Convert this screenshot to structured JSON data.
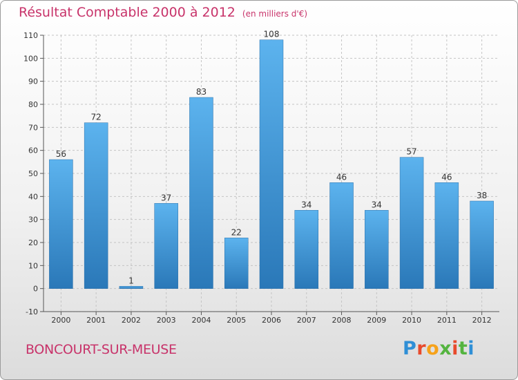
{
  "chart_data": {
    "type": "bar",
    "title": "Résultat Comptable 2000 à 2012",
    "subtitle": "(en milliers d'€)",
    "categories": [
      "2000",
      "2001",
      "2002",
      "2003",
      "2004",
      "2005",
      "2006",
      "2007",
      "2008",
      "2009",
      "2010",
      "2011",
      "2012"
    ],
    "values": [
      56,
      72,
      1,
      37,
      83,
      22,
      108,
      34,
      46,
      34,
      57,
      46,
      38
    ],
    "ylim": [
      -10,
      110
    ],
    "yticks": [
      -10,
      0,
      10,
      20,
      30,
      40,
      50,
      60,
      70,
      80,
      90,
      100,
      110
    ],
    "xlabel": "",
    "ylabel": "",
    "grid": true
  },
  "town_name": "BONCOURT-SUR-MEUSE",
  "logo": {
    "letters": [
      "P",
      "r",
      "o",
      "x",
      "i",
      "t",
      "i"
    ],
    "colors": [
      "#2f8fd6",
      "#e84a2c",
      "#f6a21a",
      "#54b43f",
      "#e84a2c",
      "#54b43f",
      "#2f8fd6"
    ]
  },
  "colors": {
    "title": "#c8336a",
    "bar_light": "#5cb3ee",
    "bar_dark": "#2a78b8"
  }
}
